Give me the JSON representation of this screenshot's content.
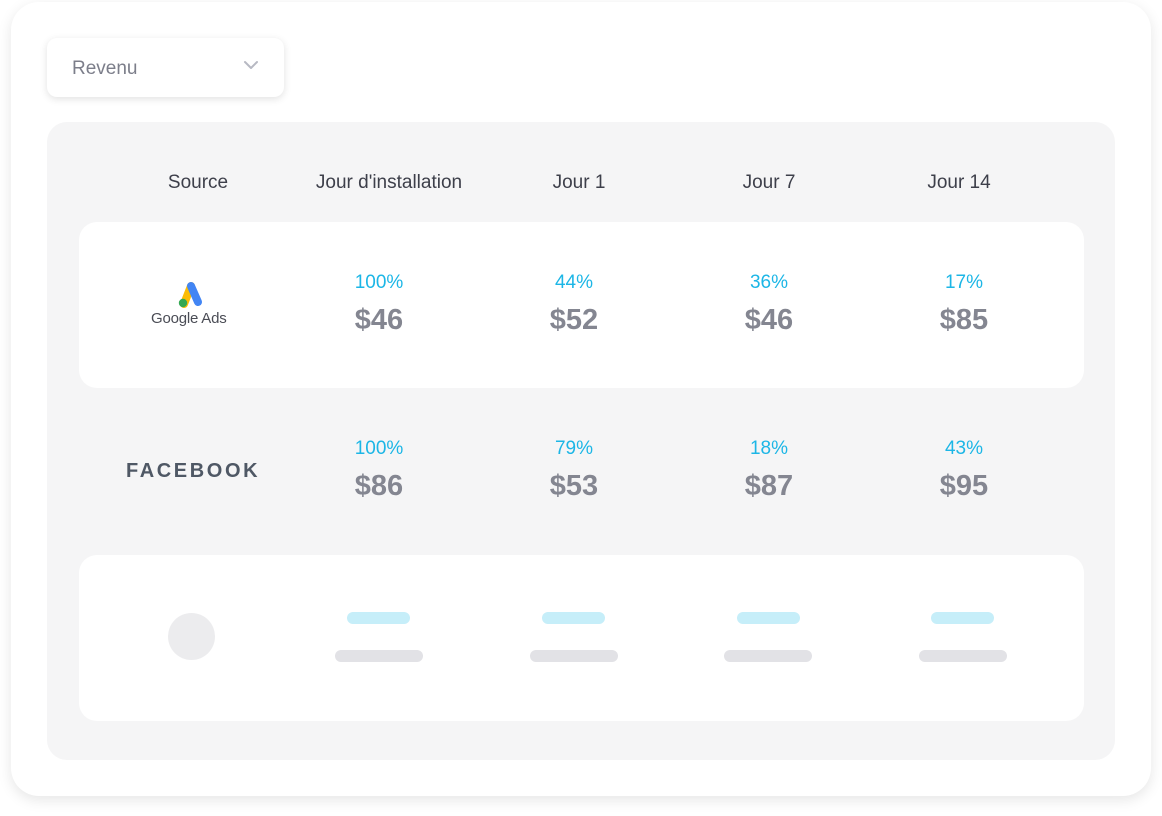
{
  "dropdown": {
    "selected": "Revenu",
    "icon": "chevron-down-icon"
  },
  "table": {
    "headers": [
      "Source",
      "Jour d'installation",
      "Jour 1",
      "Jour 7",
      "Jour 14"
    ],
    "rows": [
      {
        "source": "Google Ads",
        "cells": [
          {
            "pct": "100%",
            "value": "$46"
          },
          {
            "pct": "44%",
            "value": "$52"
          },
          {
            "pct": "36%",
            "value": "$46"
          },
          {
            "pct": "17%",
            "value": "$85"
          }
        ]
      },
      {
        "source": "FACEBOOK",
        "cells": [
          {
            "pct": "100%",
            "value": "$86"
          },
          {
            "pct": "79%",
            "value": "$53"
          },
          {
            "pct": "18%",
            "value": "$87"
          },
          {
            "pct": "43%",
            "value": "$95"
          }
        ]
      }
    ]
  },
  "colors": {
    "percent": "#1cb6e6",
    "value": "#848691",
    "panel": "#f5f5f6"
  }
}
